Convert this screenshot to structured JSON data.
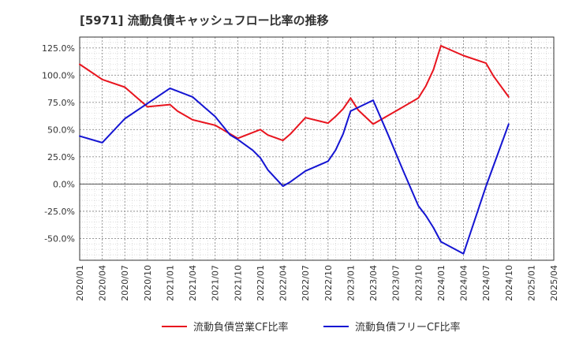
{
  "chart_data": {
    "type": "line",
    "title": "[5971]  流動負債キャッシュフロー比率の推移",
    "xlabel": "",
    "ylabel": "",
    "ylim": [
      -70,
      135
    ],
    "y_ticks": [
      125,
      100,
      75,
      50,
      25,
      0,
      -25,
      -50
    ],
    "y_tick_labels": [
      "125.0%",
      "100.0%",
      "75.0%",
      "50.0%",
      "25.0%",
      "0.0%",
      "-25.0%",
      "-50.0%"
    ],
    "x_tick_labels": [
      "2020/01",
      "2020/04",
      "2020/07",
      "2020/10",
      "2021/01",
      "2021/04",
      "2021/07",
      "2021/10",
      "2022/01",
      "2022/04",
      "2022/07",
      "2022/10",
      "2023/01",
      "2023/04",
      "2023/07",
      "2023/10",
      "2024/01",
      "2024/04",
      "2024/07",
      "2024/10",
      "2025/01",
      "2025/04"
    ],
    "x_domain_months": [
      0,
      63
    ],
    "grid": true,
    "legend_position": "bottom-center",
    "series": [
      {
        "name": "流動負債営業CF比率",
        "color": "#e8141e",
        "points": [
          {
            "m": 0,
            "v": 110
          },
          {
            "m": 3,
            "v": 96
          },
          {
            "m": 6,
            "v": 89
          },
          {
            "m": 9,
            "v": 71
          },
          {
            "m": 12,
            "v": 73
          },
          {
            "m": 13,
            "v": 67
          },
          {
            "m": 15,
            "v": 59
          },
          {
            "m": 18,
            "v": 54
          },
          {
            "m": 21,
            "v": 42
          },
          {
            "m": 24,
            "v": 50
          },
          {
            "m": 25,
            "v": 45
          },
          {
            "m": 27,
            "v": 40
          },
          {
            "m": 28,
            "v": 46
          },
          {
            "m": 30,
            "v": 61
          },
          {
            "m": 33,
            "v": 56
          },
          {
            "m": 34,
            "v": 62
          },
          {
            "m": 35,
            "v": 69
          },
          {
            "m": 36,
            "v": 79
          },
          {
            "m": 37,
            "v": 68
          },
          {
            "m": 39,
            "v": 55
          },
          {
            "m": 42,
            "v": 67
          },
          {
            "m": 45,
            "v": 79
          },
          {
            "m": 46,
            "v": 90
          },
          {
            "m": 47,
            "v": 105
          },
          {
            "m": 48,
            "v": 127
          },
          {
            "m": 51,
            "v": 118
          },
          {
            "m": 54,
            "v": 111
          },
          {
            "m": 55,
            "v": 99
          },
          {
            "m": 57,
            "v": 80
          }
        ]
      },
      {
        "name": "流動負債フリーCF比率",
        "color": "#1414d2",
        "points": [
          {
            "m": 0,
            "v": 44
          },
          {
            "m": 3,
            "v": 38
          },
          {
            "m": 6,
            "v": 60
          },
          {
            "m": 9,
            "v": 74
          },
          {
            "m": 12,
            "v": 88
          },
          {
            "m": 15,
            "v": 80
          },
          {
            "m": 18,
            "v": 62
          },
          {
            "m": 20,
            "v": 45
          },
          {
            "m": 21,
            "v": 41
          },
          {
            "m": 23,
            "v": 31
          },
          {
            "m": 24,
            "v": 24
          },
          {
            "m": 25,
            "v": 13
          },
          {
            "m": 27,
            "v": -2
          },
          {
            "m": 28,
            "v": 2
          },
          {
            "m": 30,
            "v": 12
          },
          {
            "m": 33,
            "v": 21
          },
          {
            "m": 34,
            "v": 31
          },
          {
            "m": 35,
            "v": 46
          },
          {
            "m": 36,
            "v": 67
          },
          {
            "m": 39,
            "v": 77
          },
          {
            "m": 41,
            "v": 45
          },
          {
            "m": 43,
            "v": 12
          },
          {
            "m": 45,
            "v": -20
          },
          {
            "m": 46,
            "v": -29
          },
          {
            "m": 47,
            "v": -40
          },
          {
            "m": 48,
            "v": -53
          },
          {
            "m": 51,
            "v": -64
          },
          {
            "m": 54,
            "v": -2
          },
          {
            "m": 57,
            "v": 55
          }
        ]
      }
    ]
  }
}
